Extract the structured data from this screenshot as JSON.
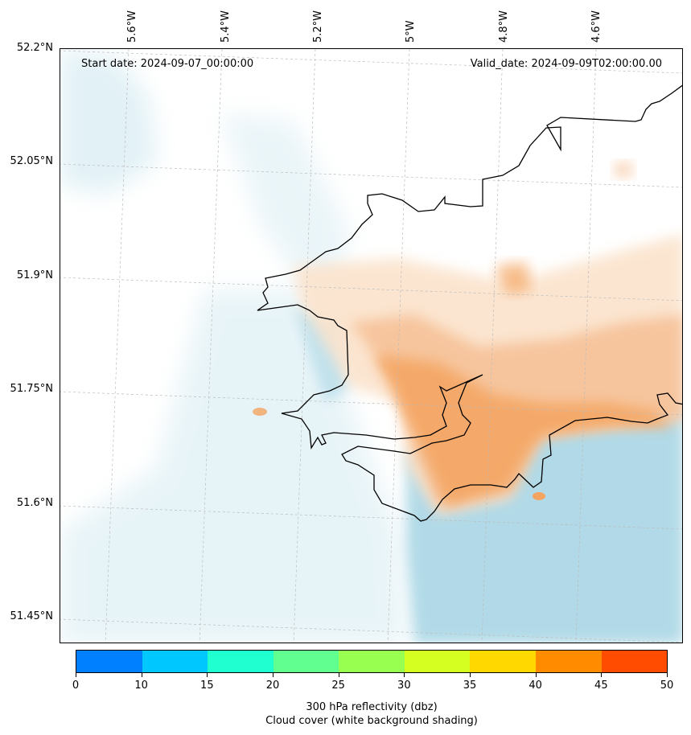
{
  "map": {
    "start_date": "Start date: 2024-09-07_00:00:00",
    "valid_date": "Valid_date: 2024-09-09T02:00:00.00",
    "lat_labels": [
      "52.2°N",
      "52.05°N",
      "51.9°N",
      "51.75°N",
      "51.6°N",
      "51.45°N"
    ],
    "lon_labels": [
      "5.6°W",
      "5.4°W",
      "5.2°W",
      "5°W",
      "4.8°W",
      "4.6°W"
    ],
    "cloud_color": "#add8e6",
    "reflectivity_color": "#f4a460",
    "coastline_color": "#000000"
  },
  "colorbar": {
    "ticks": [
      "0",
      "10",
      "15",
      "20",
      "25",
      "30",
      "35",
      "40",
      "45",
      "50"
    ],
    "colors": [
      "#0080ff",
      "#00c8ff",
      "#20ffd0",
      "#60ff90",
      "#98ff50",
      "#d4ff20",
      "#ffd800",
      "#ff8c00",
      "#ff4c00"
    ],
    "title_line1": "300 hPa reflectivity (dbz)",
    "title_line2": "Cloud cover (white background shading)"
  }
}
